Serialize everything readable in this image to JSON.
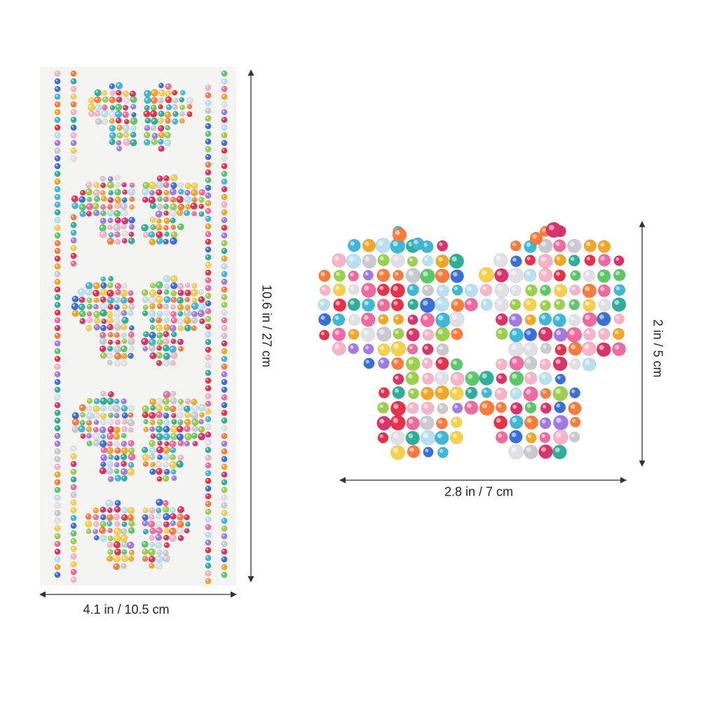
{
  "dimensions": {
    "sheet_height": "10.6 in / 27 cm",
    "sheet_width": "4.1 in / 10.5 cm",
    "butterfly_height": "2 in / 5 cm",
    "butterfly_width": "2.8 in / 7 cm"
  },
  "colors": {
    "sheet_background": "#f3f3f1",
    "arrow": "#333333",
    "gem_palette": [
      "#e8304a",
      "#f06aa0",
      "#f7b3c8",
      "#3fb8d8",
      "#2fae9a",
      "#9ad04a",
      "#5cc86a",
      "#f5a623",
      "#f7d04a",
      "#a27be0",
      "#c9c9cf",
      "#e0e0e6",
      "#d8336b",
      "#3a6fd8",
      "#ff7b3a",
      "#b8e0f0"
    ]
  }
}
